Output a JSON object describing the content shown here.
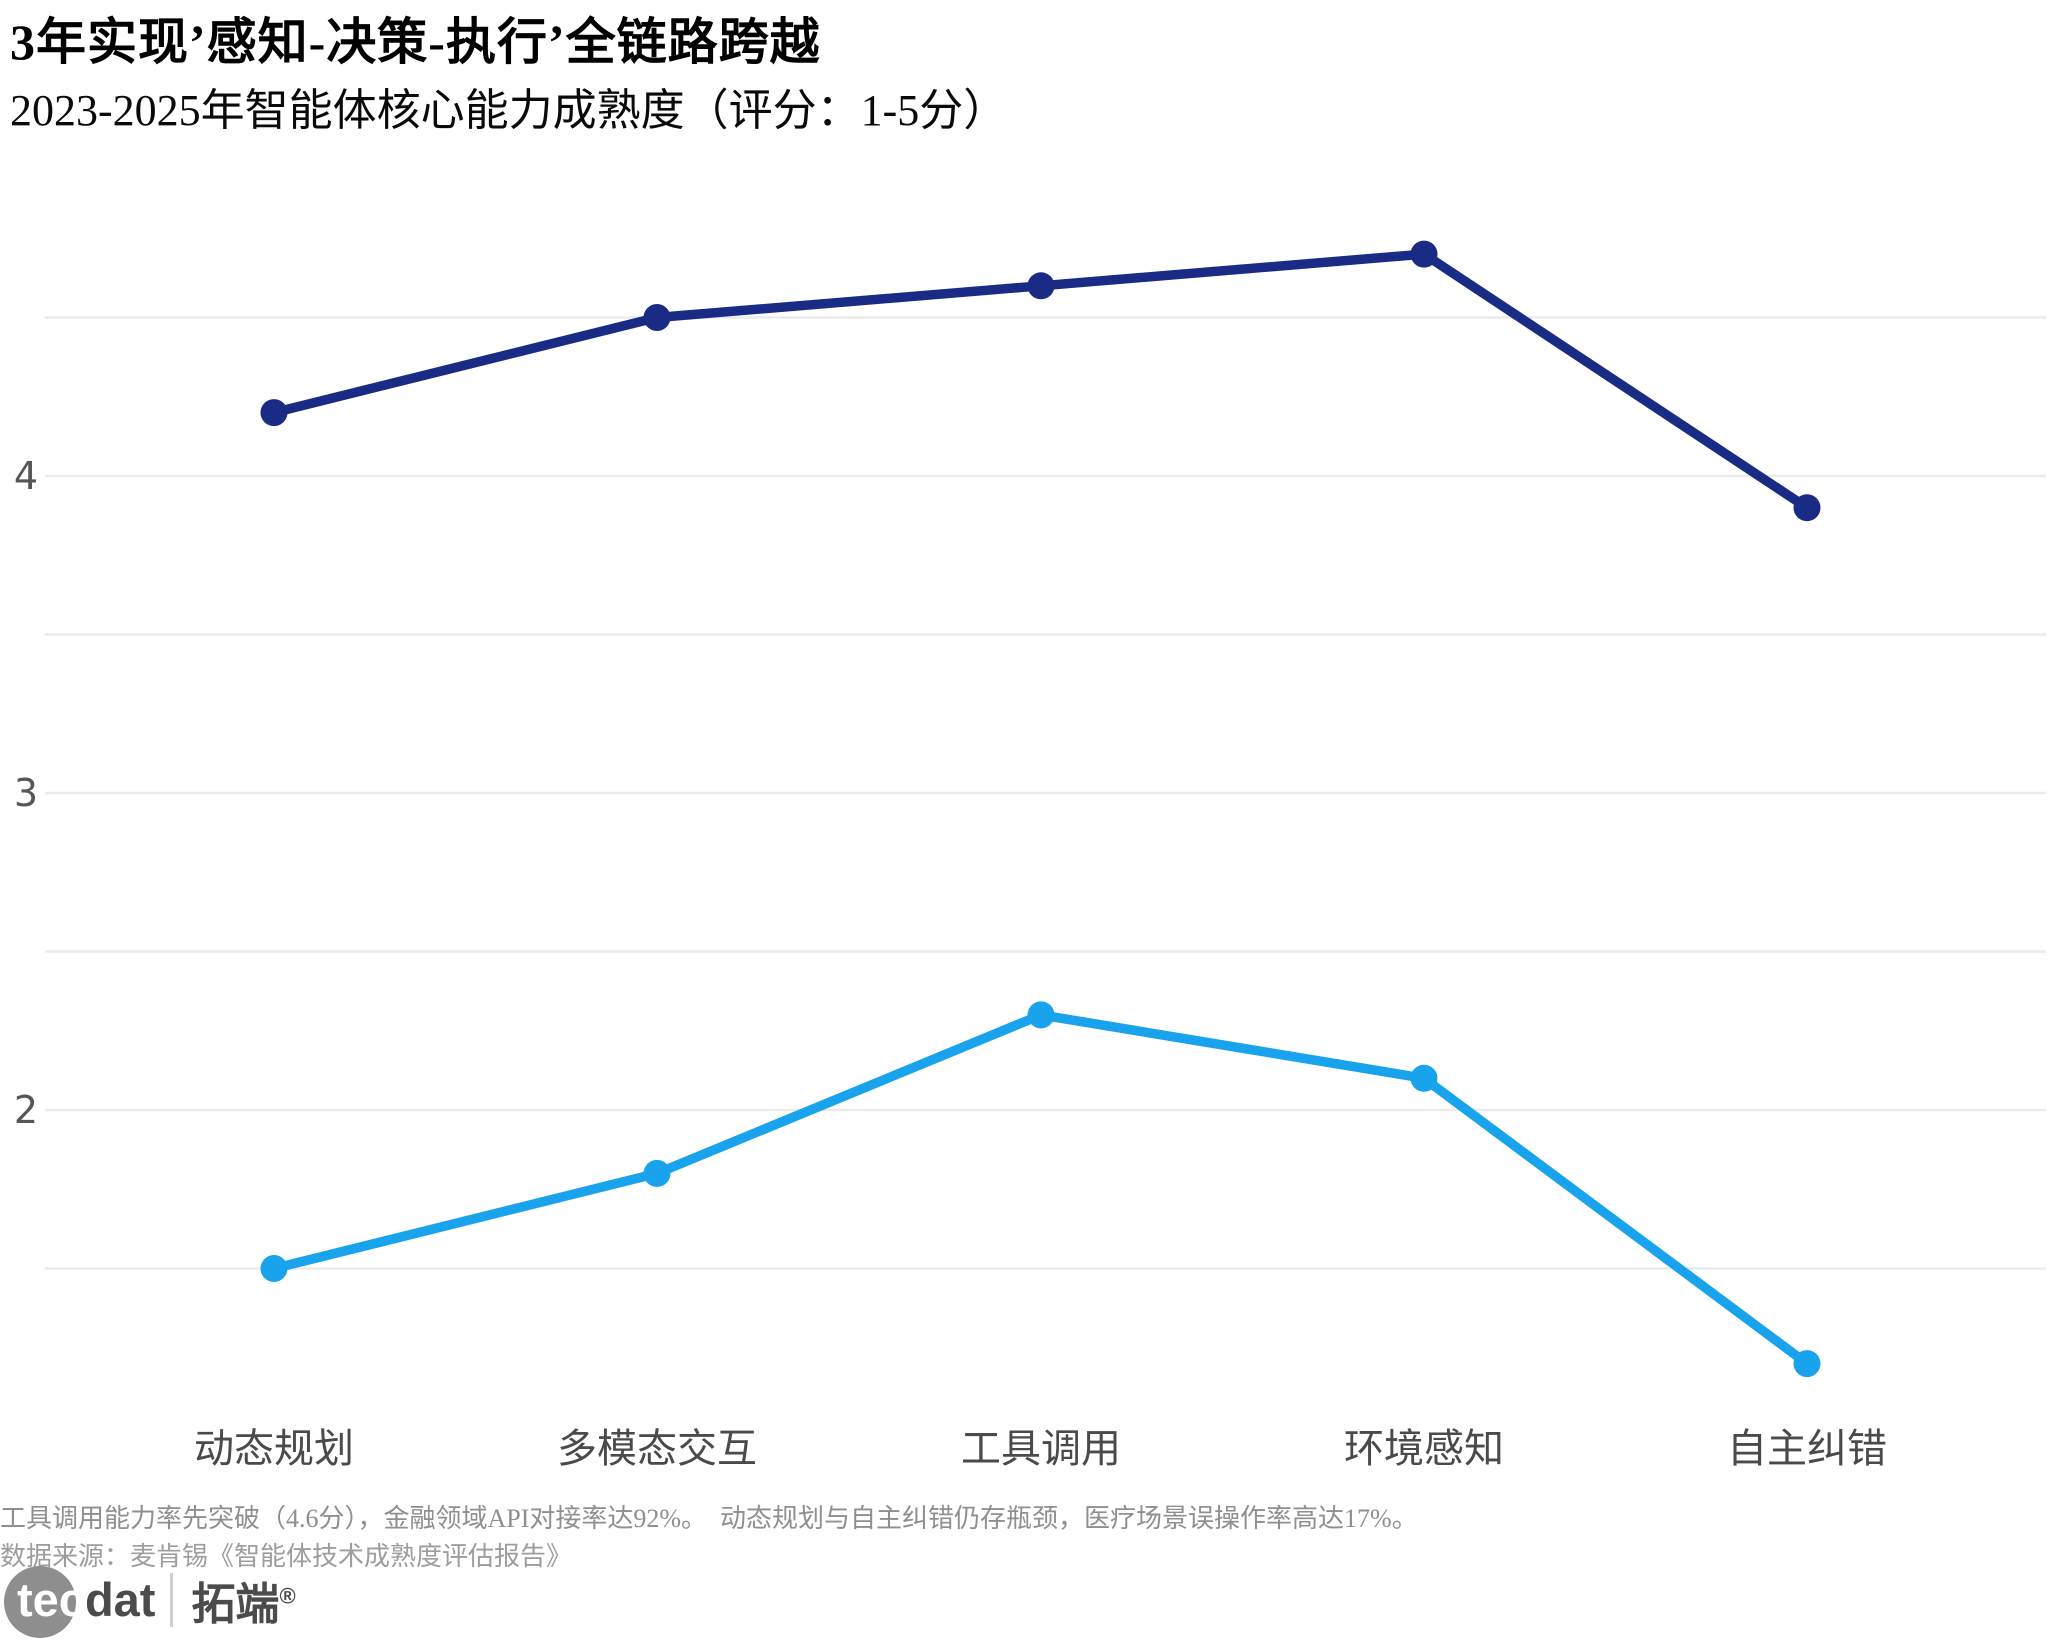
{
  "chart_data": {
    "type": "line",
    "title": "3年实现’感知-决策-执行’全链路跨越",
    "subtitle": "2023-2025年智能体核心能力成熟度（评分：1-5分）",
    "categories": [
      "动态规划",
      "多模态交互",
      "工具调用",
      "环境感知",
      "自主纠错"
    ],
    "series": [
      {
        "id": "navy-line",
        "color": "#192B85",
        "values": [
          4.2,
          4.5,
          4.6,
          4.7,
          3.9
        ]
      },
      {
        "id": "sky-blue-line",
        "color": "#18A3EC",
        "values": [
          1.5,
          1.8,
          2.3,
          2.1,
          1.2
        ]
      }
    ],
    "xlabel": "",
    "ylabel": "",
    "ylim": [
      1,
      5
    ],
    "yticks": [
      2,
      3,
      4
    ],
    "gridlines": [
      1.5,
      2,
      2.5,
      3,
      3.5,
      4,
      4.5
    ],
    "grid": true,
    "legend_position": "none"
  },
  "footnotes": {
    "line1": "工具调用能力率先突破（4.6分），金融领域API对接率达92%。　动态规划与自主纠错仍存瓶颈，医疗场景误操作率高达17%。",
    "line2": "数据来源：麦肯锡《智能体技术成熟度评估报告》"
  },
  "logo": {
    "tec": "tec",
    "dat": "dat",
    "cn": "拓端",
    "reg": "®"
  },
  "colors": {
    "gridline": "#ebebeb",
    "y_tick_label": "#565656",
    "x_category_label": "#4a4a4a",
    "background": "#ffffff"
  }
}
